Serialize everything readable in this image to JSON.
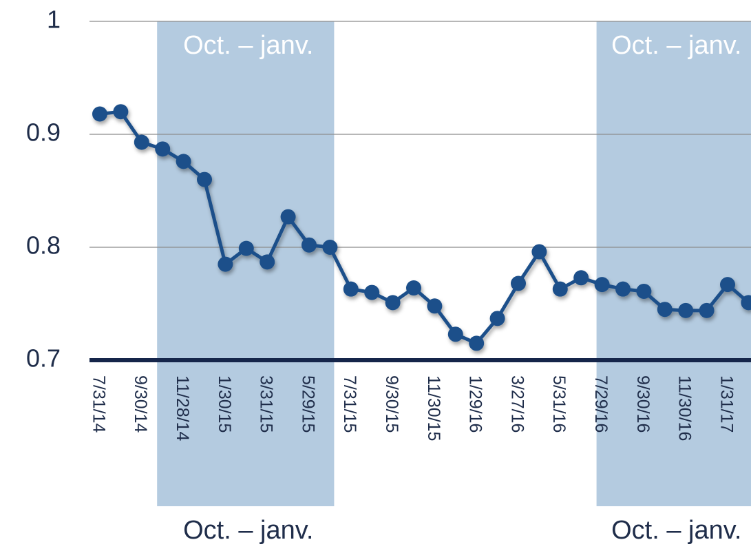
{
  "chart_data": {
    "type": "line",
    "categories": [
      "7/31/14",
      null,
      "9/30/14",
      null,
      "11/28/14",
      null,
      "1/30/15",
      null,
      "3/31/15",
      null,
      "5/29/15",
      null,
      "7/31/15",
      null,
      "9/30/15",
      null,
      "11/30/15",
      null,
      "1/29/16",
      null,
      "3/27/16",
      null,
      "5/31/16",
      null,
      "7/29/16",
      null,
      "9/30/16",
      null,
      "11/30/16",
      null,
      "1/31/17",
      null
    ],
    "series": [
      {
        "color": "#1b4f8a",
        "values": [
          0.918,
          0.92,
          0.893,
          0.887,
          0.876,
          0.86,
          0.785,
          0.799,
          0.787,
          0.827,
          0.802,
          0.8,
          0.763,
          0.76,
          0.751,
          0.764,
          0.748,
          0.723,
          0.715,
          0.737,
          0.768,
          0.796,
          0.763,
          0.773,
          0.767,
          0.763,
          0.761,
          0.745,
          0.744,
          0.744,
          0.767,
          0.751
        ]
      }
    ],
    "ylim": [
      0.7,
      1
    ],
    "yticks": [
      0.7,
      0.8,
      0.9,
      1
    ],
    "grid": true,
    "shaded_periods": [
      {
        "label": "Oct. – janv.",
        "start": 3,
        "end": 11
      },
      {
        "label": "Oct. – janv.",
        "start": 24,
        "end": 31
      }
    ]
  }
}
